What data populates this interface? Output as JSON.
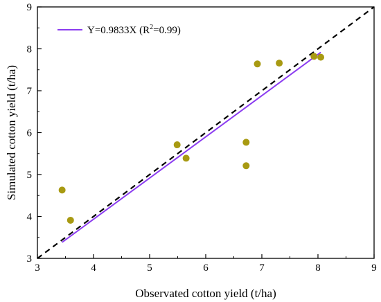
{
  "chart_data": {
    "type": "scatter",
    "xlabel": "Observated cotton yield (t/ha)",
    "ylabel": "Simulated cotton yield (t/ha)",
    "xlim": [
      3,
      9
    ],
    "ylim": [
      3,
      9
    ],
    "xticks": [
      "3",
      "4",
      "5",
      "6",
      "7",
      "8",
      "9"
    ],
    "yticks": [
      "3",
      "4",
      "5",
      "6",
      "7",
      "8",
      "9"
    ],
    "grid": false,
    "legend_position": "top-left",
    "points": [
      {
        "x": 3.44,
        "y": 4.63
      },
      {
        "x": 3.59,
        "y": 3.91
      },
      {
        "x": 5.49,
        "y": 5.71
      },
      {
        "x": 5.65,
        "y": 5.39
      },
      {
        "x": 6.72,
        "y": 5.77
      },
      {
        "x": 6.72,
        "y": 5.21
      },
      {
        "x": 6.92,
        "y": 7.64
      },
      {
        "x": 7.31,
        "y": 7.66
      },
      {
        "x": 7.93,
        "y": 7.82
      },
      {
        "x": 8.05,
        "y": 7.8
      }
    ],
    "point_color": "#a89a12",
    "fit_line": {
      "slope": 0.9833,
      "x_range": [
        3.44,
        8.05
      ],
      "color": "#8b3cf0",
      "legend": {
        "prefix": "Y=0.9833X (R",
        "sup": "2",
        "suffix": "=0.99)"
      }
    },
    "reference_line": {
      "slope": 1,
      "x_range": [
        3,
        9
      ],
      "style": "dashed",
      "color": "#000000"
    }
  }
}
